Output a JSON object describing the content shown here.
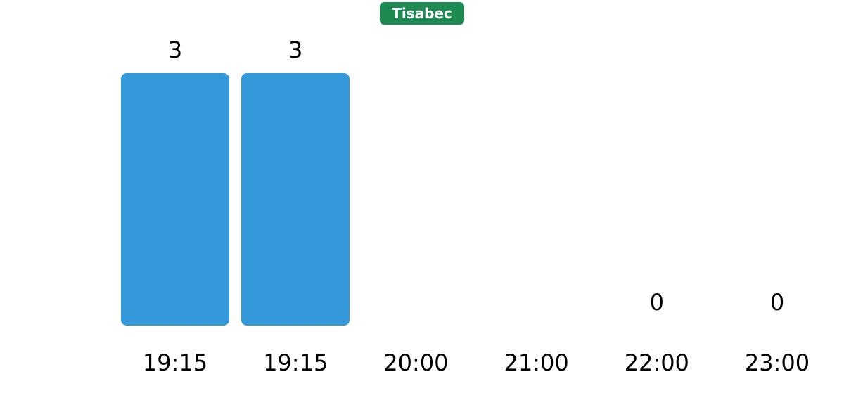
{
  "legend": {
    "label": "Tisabec"
  },
  "colors": {
    "bar": "#3398da",
    "badge_background": "#1d8a52",
    "badge_text": "#ffffff",
    "label_text": "#000000",
    "background": "#ffffff"
  },
  "chart_data": {
    "type": "bar",
    "series_name": "Tisabec",
    "categories": [
      "19:15",
      "19:15",
      "20:00",
      "21:00",
      "22:00",
      "23:00"
    ],
    "values": [
      3,
      3,
      null,
      null,
      0,
      0
    ],
    "value_labels": [
      "3",
      "3",
      "",
      "",
      "0",
      "0"
    ],
    "title": "",
    "xlabel": "",
    "ylabel": "",
    "ylim": [
      0,
      3
    ],
    "grid": false,
    "axes_visible": false,
    "legend_position": "top-center",
    "bar_color": "#3398da"
  }
}
